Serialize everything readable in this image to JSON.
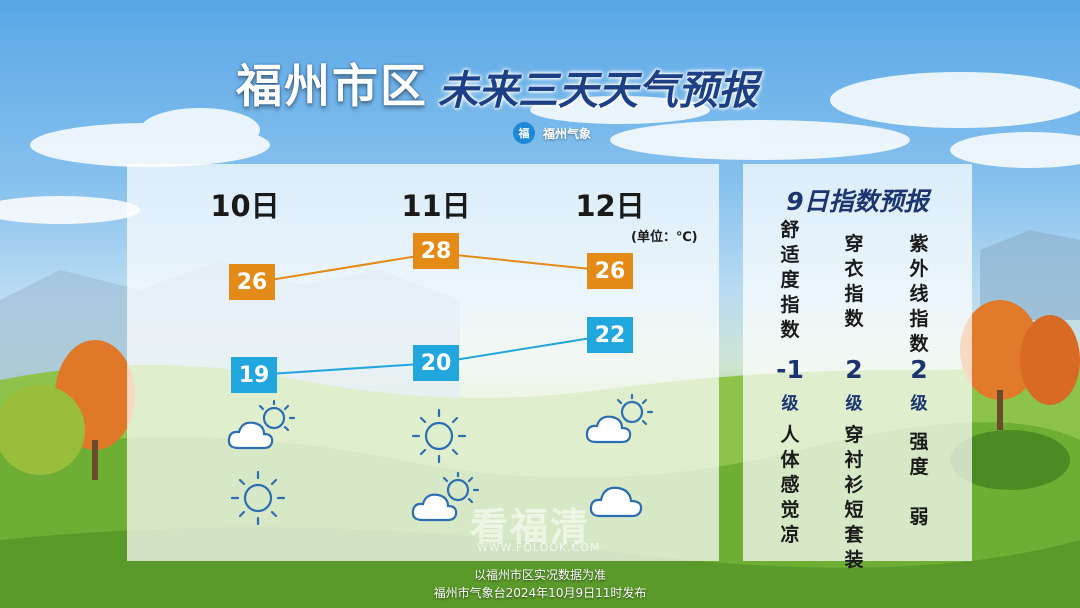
{
  "title": {
    "region": "福州市区",
    "subtitle": "未来三天天气预报"
  },
  "brand": {
    "logo": "福",
    "name": "福州气象"
  },
  "forecast": {
    "unit_label": "(单位：℃)",
    "days": [
      {
        "label": "10日",
        "high": "26",
        "low": "19",
        "icon_day": "partly-cloudy-icon",
        "icon_night": "sunny-icon"
      },
      {
        "label": "11日",
        "high": "28",
        "low": "20",
        "icon_day": "sunny-icon",
        "icon_night": "partly-cloudy-icon"
      },
      {
        "label": "12日",
        "high": "26",
        "low": "22",
        "icon_day": "partly-cloudy-icon",
        "icon_night": "cloudy-icon"
      }
    ],
    "colors": {
      "high": "#e48a16",
      "low": "#22a6de"
    }
  },
  "index": {
    "title": "9日指数预报",
    "items": [
      {
        "name": "舒适度指数",
        "value": "-1",
        "level": "级",
        "desc": "人体感觉凉"
      },
      {
        "name": "穿衣指数",
        "value": "2",
        "level": "级",
        "desc": "穿衬衫短套装"
      },
      {
        "name": "紫外线指数",
        "value": "2",
        "level": "级",
        "desc": "强度 弱"
      }
    ]
  },
  "watermark": {
    "text": "看福清",
    "url": "WWW.FQLOOK.COM"
  },
  "footer": {
    "line1": "以福州市区实况数据为准",
    "line2": "福州市气象台2024年10月9日11时发布"
  }
}
